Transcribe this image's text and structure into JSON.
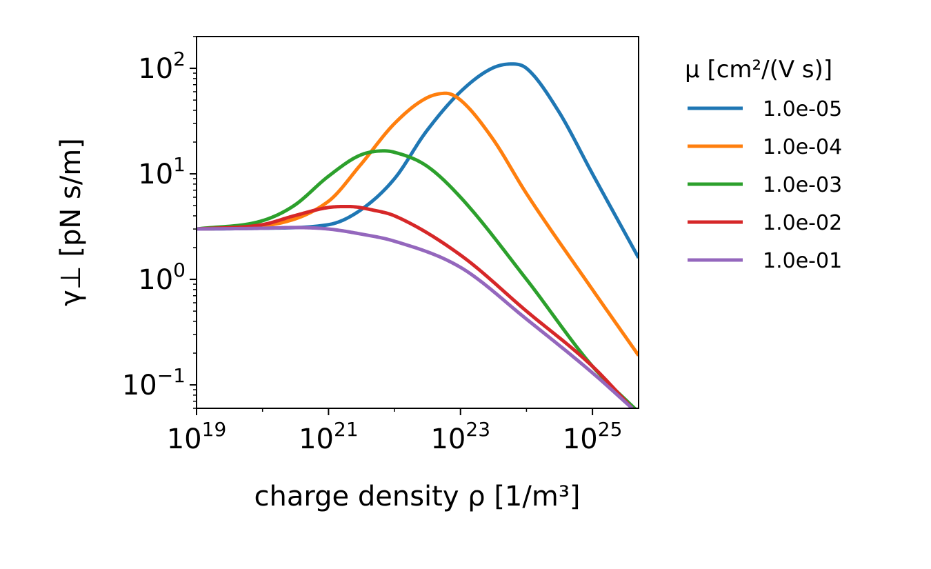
{
  "chart_data": {
    "type": "line",
    "x_scale": "log",
    "y_scale": "log",
    "xlim": [
      1e+19,
      5e+25
    ],
    "ylim": [
      0.06,
      200
    ],
    "xlabel": "charge density ρ [1/m³]",
    "ylabel": "γ⊥ [pN s/m]",
    "grid": false,
    "legend_title": "μ [cm²/(V s)]",
    "legend_position": "right outside",
    "x_ticks": [
      {
        "value": 1e+19,
        "base": "10",
        "exp": "19"
      },
      {
        "value": 1e+21,
        "base": "10",
        "exp": "21"
      },
      {
        "value": 1e+23,
        "base": "10",
        "exp": "23"
      },
      {
        "value": 1e+25,
        "base": "10",
        "exp": "25"
      }
    ],
    "y_ticks": [
      {
        "value": 0.1,
        "base": "10",
        "exp": "−1"
      },
      {
        "value": 1,
        "base": "10",
        "exp": "0"
      },
      {
        "value": 10,
        "base": "10",
        "exp": "1"
      },
      {
        "value": 100,
        "base": "10",
        "exp": "2"
      }
    ],
    "series": [
      {
        "name": "1.0e-05",
        "color": "#1f77b4",
        "x": [
          1e+19,
          1e+20,
          1e+21,
          3e+21,
          1e+22,
          3e+22,
          1e+23,
          3e+23,
          6e+23,
          1e+24,
          3e+24,
          1e+25,
          5e+25
        ],
        "y": [
          3.0,
          3.05,
          3.3,
          4.5,
          9,
          25,
          60,
          100,
          110,
          100,
          40,
          10,
          1.6
        ]
      },
      {
        "name": "1.0e-04",
        "color": "#ff7f0e",
        "x": [
          1e+19,
          1e+20,
          1e+21,
          3e+21,
          1e+22,
          3e+22,
          6e+22,
          1e+23,
          3e+23,
          1e+24,
          1e+25,
          5e+25
        ],
        "y": [
          3.0,
          3.2,
          5.5,
          12,
          30,
          52,
          58,
          50,
          22,
          6.5,
          0.8,
          0.19
        ]
      },
      {
        "name": "1.0e-03",
        "color": "#2ca02c",
        "x": [
          1e+19,
          1e+20,
          3e+20,
          1e+21,
          3e+21,
          7e+21,
          1e+22,
          3e+22,
          1e+23,
          1e+24,
          1e+25,
          5e+25
        ],
        "y": [
          3.0,
          3.6,
          5.0,
          9.5,
          15,
          16.5,
          16,
          12,
          6,
          1.0,
          0.15,
          0.055
        ]
      },
      {
        "name": "1.0e-02",
        "color": "#d62728",
        "x": [
          1e+19,
          1e+20,
          3e+20,
          1e+21,
          2e+21,
          5e+21,
          1e+22,
          1e+23,
          1e+24,
          1e+25,
          4e+25
        ],
        "y": [
          3.0,
          3.3,
          4.0,
          4.8,
          4.9,
          4.5,
          4.0,
          1.7,
          0.5,
          0.15,
          0.06
        ]
      },
      {
        "name": "1.0e-01",
        "color": "#9467bd",
        "x": [
          1e+19,
          1e+20,
          3e+20,
          1e+21,
          3e+21,
          1e+22,
          1e+23,
          1e+24,
          1e+25,
          4e+25
        ],
        "y": [
          3.0,
          3.05,
          3.1,
          3.0,
          2.7,
          2.3,
          1.3,
          0.42,
          0.13,
          0.06
        ]
      }
    ]
  }
}
